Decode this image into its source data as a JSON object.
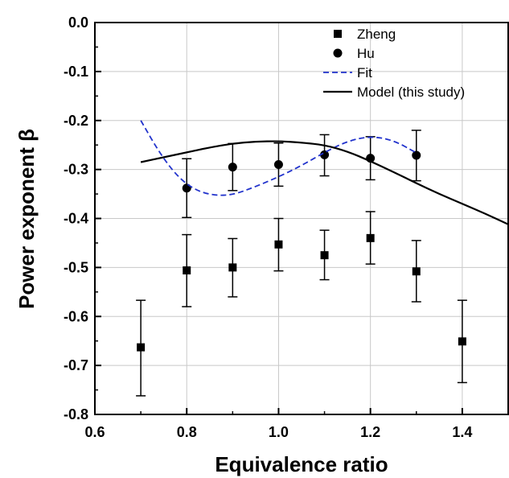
{
  "chart_data": {
    "type": "scatter",
    "xlabel": "Equivalence ratio",
    "ylabel": "Power exponent β",
    "xlim": [
      0.6,
      1.5
    ],
    "ylim": [
      -0.8,
      0.0
    ],
    "xticks": [
      "0.6",
      "0.8",
      "1.0",
      "1.2",
      "1.4"
    ],
    "yticks": [
      "0.0",
      "-0.1",
      "-0.2",
      "-0.3",
      "-0.4",
      "-0.5",
      "-0.6",
      "-0.7",
      "-0.8"
    ],
    "grid": true,
    "legend_position": "top-right",
    "series": [
      {
        "name": "Zheng",
        "kind": "scatter",
        "marker": "square",
        "color": "#000000",
        "x": [
          0.7,
          0.8,
          0.9,
          1.0,
          1.1,
          1.2,
          1.3,
          1.4
        ],
        "y": [
          -0.663,
          -0.506,
          -0.5,
          -0.453,
          -0.475,
          -0.44,
          -0.508,
          -0.651
        ],
        "err_low": [
          -0.762,
          -0.58,
          -0.56,
          -0.507,
          -0.525,
          -0.493,
          -0.57,
          -0.735
        ],
        "err_high": [
          -0.567,
          -0.433,
          -0.441,
          -0.4,
          -0.424,
          -0.386,
          -0.445,
          -0.567
        ]
      },
      {
        "name": "Hu",
        "kind": "scatter",
        "marker": "circle",
        "color": "#000000",
        "x": [
          0.8,
          0.9,
          1.0,
          1.1,
          1.2,
          1.3
        ],
        "y": [
          -0.338,
          -0.295,
          -0.29,
          -0.27,
          -0.277,
          -0.271
        ],
        "err_low": [
          -0.398,
          -0.343,
          -0.334,
          -0.313,
          -0.321,
          -0.323
        ],
        "err_high": [
          -0.278,
          -0.247,
          -0.246,
          -0.229,
          -0.233,
          -0.22
        ]
      },
      {
        "name": "Fit",
        "kind": "line",
        "style": "dashed",
        "color": "#2233cc",
        "x": [
          0.7,
          0.74,
          0.78,
          0.82,
          0.86,
          0.9,
          0.95,
          1.0,
          1.05,
          1.1,
          1.15,
          1.2,
          1.25,
          1.3
        ],
        "y": [
          -0.2,
          -0.265,
          -0.315,
          -0.343,
          -0.353,
          -0.352,
          -0.335,
          -0.315,
          -0.292,
          -0.265,
          -0.242,
          -0.232,
          -0.24,
          -0.266
        ]
      },
      {
        "name": "Model (this study)",
        "kind": "line",
        "style": "solid",
        "color": "#000000",
        "x": [
          0.7,
          0.75,
          0.8,
          0.85,
          0.9,
          0.95,
          1.0,
          1.05,
          1.1,
          1.15,
          1.2,
          1.25,
          1.3,
          1.35,
          1.4,
          1.45,
          1.5
        ],
        "y": [
          -0.285,
          -0.275,
          -0.265,
          -0.255,
          -0.247,
          -0.243,
          -0.242,
          -0.245,
          -0.25,
          -0.263,
          -0.283,
          -0.305,
          -0.328,
          -0.35,
          -0.37,
          -0.39,
          -0.412
        ]
      }
    ]
  }
}
